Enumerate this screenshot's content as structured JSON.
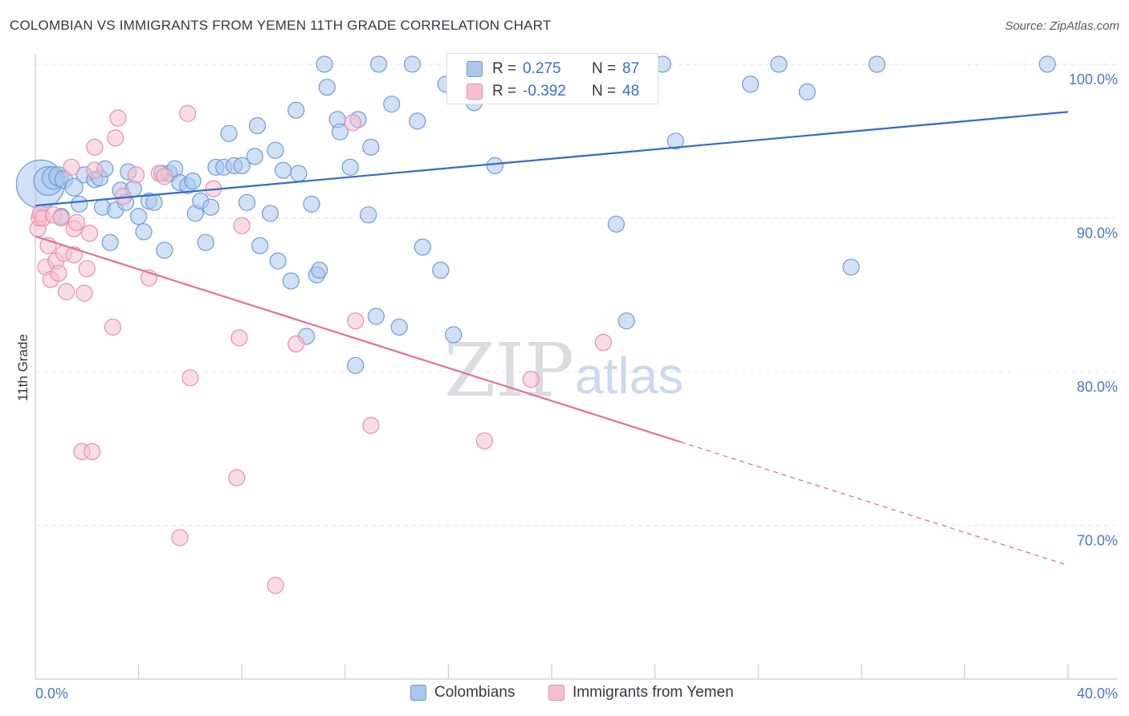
{
  "header": {
    "title": "COLOMBIAN VS IMMIGRANTS FROM YEMEN 11TH GRADE CORRELATION CHART",
    "source": "Source: ZipAtlas.com"
  },
  "watermark": {
    "zip": "ZIP",
    "atlas": "atlas"
  },
  "colors": {
    "blue_fill": "#a9c6ec",
    "blue_stroke": "#6f9bd8",
    "blue_line": "#2f6cc7",
    "pink_fill": "#f6bfd0",
    "pink_stroke": "#e98fab",
    "pink_line": "#e0709a",
    "tick_text": "#4a78c4",
    "grid": "#e3e5ea"
  },
  "legend": {
    "rows": [
      {
        "r_label": "R =",
        "r_value": "0.275",
        "n_label": "N =",
        "n_value": "87"
      },
      {
        "r_label": "R =",
        "r_value": "-0.392",
        "n_label": "N =",
        "n_value": "48"
      }
    ]
  },
  "bottom_legend": {
    "series1": "Colombians",
    "series2": "Immigrants from Yemen"
  },
  "chart_data": {
    "type": "scatter",
    "xlabel": "",
    "ylabel": "11th Grade",
    "xlim": [
      0,
      40
    ],
    "ylim": [
      60.5,
      100.8
    ],
    "x_tick_labels": [
      "0.0%",
      "40.0%"
    ],
    "y_ticks": [
      100,
      90,
      80,
      70
    ],
    "y_tick_labels": [
      "100.0%",
      "90.0%",
      "80.0%",
      "70.0%"
    ],
    "grid": true,
    "legend_position": "top-center",
    "series": [
      {
        "name": "Colombians",
        "color": "#a9c6ec",
        "trend": {
          "x": [
            0,
            40
          ],
          "y": [
            90.8,
            96.9
          ],
          "dashed_from": null
        },
        "points": [
          [
            0.2,
            92.2,
            30
          ],
          [
            0.5,
            92.4,
            18
          ],
          [
            0.7,
            92.6,
            14
          ],
          [
            0.9,
            92.7,
            12
          ],
          [
            1.1,
            92.5,
            11
          ],
          [
            1.5,
            92.0,
            11
          ],
          [
            1.0,
            90.1,
            10
          ],
          [
            1.7,
            90.9,
            10
          ],
          [
            1.9,
            92.8,
            10
          ],
          [
            2.3,
            92.5,
            10
          ],
          [
            2.5,
            92.6,
            10
          ],
          [
            2.6,
            90.7,
            10
          ],
          [
            2.7,
            93.2,
            10
          ],
          [
            2.9,
            88.4,
            10
          ],
          [
            3.1,
            90.5,
            10
          ],
          [
            3.3,
            91.8,
            10
          ],
          [
            3.5,
            91.0,
            10
          ],
          [
            3.6,
            93.0,
            10
          ],
          [
            3.8,
            91.9,
            10
          ],
          [
            4.0,
            90.1,
            10
          ],
          [
            4.2,
            89.1,
            10
          ],
          [
            4.4,
            91.1,
            10
          ],
          [
            4.6,
            91.0,
            10
          ],
          [
            4.9,
            92.9,
            10
          ],
          [
            5.0,
            87.9,
            10
          ],
          [
            5.2,
            92.9,
            10
          ],
          [
            5.4,
            93.2,
            10
          ],
          [
            5.6,
            92.3,
            10
          ],
          [
            5.9,
            92.1,
            10
          ],
          [
            6.1,
            92.4,
            10
          ],
          [
            6.2,
            90.3,
            10
          ],
          [
            6.4,
            91.1,
            10
          ],
          [
            6.6,
            88.4,
            10
          ],
          [
            6.8,
            90.7,
            10
          ],
          [
            7.0,
            93.3,
            10
          ],
          [
            7.3,
            93.3,
            10
          ],
          [
            7.5,
            95.5,
            10
          ],
          [
            7.7,
            93.4,
            10
          ],
          [
            8.0,
            93.4,
            10
          ],
          [
            8.2,
            91.0,
            10
          ],
          [
            8.5,
            94.0,
            10
          ],
          [
            8.6,
            96.0,
            10
          ],
          [
            8.7,
            88.2,
            10
          ],
          [
            9.1,
            90.3,
            10
          ],
          [
            9.3,
            94.4,
            10
          ],
          [
            9.4,
            87.2,
            10
          ],
          [
            9.6,
            93.1,
            10
          ],
          [
            9.9,
            85.9,
            10
          ],
          [
            10.1,
            97.0,
            10
          ],
          [
            10.2,
            92.9,
            10
          ],
          [
            10.5,
            82.3,
            10
          ],
          [
            10.7,
            90.9,
            10
          ],
          [
            10.9,
            86.3,
            10
          ],
          [
            11.0,
            86.6,
            10
          ],
          [
            11.2,
            100.0,
            10
          ],
          [
            11.3,
            98.5,
            10
          ],
          [
            11.7,
            96.4,
            10
          ],
          [
            11.8,
            95.6,
            10
          ],
          [
            12.2,
            93.3,
            10
          ],
          [
            12.4,
            80.4,
            10
          ],
          [
            12.5,
            96.4,
            10
          ],
          [
            12.9,
            90.2,
            10
          ],
          [
            13.0,
            94.6,
            10
          ],
          [
            13.2,
            83.6,
            10
          ],
          [
            13.3,
            100.0,
            10
          ],
          [
            13.8,
            97.4,
            10
          ],
          [
            14.1,
            82.9,
            10
          ],
          [
            14.6,
            100.0,
            10
          ],
          [
            14.8,
            96.3,
            10
          ],
          [
            15.0,
            88.1,
            10
          ],
          [
            15.7,
            86.6,
            10
          ],
          [
            15.9,
            98.7,
            10
          ],
          [
            16.2,
            82.4,
            10
          ],
          [
            17.0,
            97.5,
            10
          ],
          [
            17.8,
            93.4,
            10
          ],
          [
            20.0,
            100.0,
            10
          ],
          [
            22.5,
            89.6,
            10
          ],
          [
            22.9,
            83.3,
            10
          ],
          [
            24.3,
            100.0,
            10
          ],
          [
            24.8,
            95.0,
            10
          ],
          [
            27.7,
            98.7,
            10
          ],
          [
            28.8,
            100.0,
            10
          ],
          [
            29.9,
            98.2,
            10
          ],
          [
            31.6,
            86.8,
            10
          ],
          [
            32.6,
            100.0,
            10
          ],
          [
            39.2,
            100.0,
            10
          ],
          [
            30.5,
            100.0,
            0
          ]
        ]
      },
      {
        "name": "Immigrants from Yemen",
        "color": "#f6bfd0",
        "trend": {
          "x": [
            0,
            40
          ],
          "y": [
            88.8,
            67.4
          ],
          "dashed_from": 25.0
        },
        "points": [
          [
            0.1,
            89.3,
            10
          ],
          [
            0.15,
            90.0,
            10
          ],
          [
            0.2,
            90.3,
            10
          ],
          [
            0.3,
            90.0,
            10
          ],
          [
            0.4,
            86.8,
            10
          ],
          [
            0.5,
            88.2,
            10
          ],
          [
            0.6,
            86.0,
            10
          ],
          [
            0.7,
            90.2,
            10
          ],
          [
            0.8,
            87.2,
            10
          ],
          [
            0.9,
            86.4,
            10
          ],
          [
            1.0,
            90.0,
            10
          ],
          [
            1.1,
            87.7,
            10
          ],
          [
            1.2,
            85.2,
            10
          ],
          [
            1.4,
            93.3,
            10
          ],
          [
            1.5,
            87.6,
            10
          ],
          [
            1.5,
            89.3,
            10
          ],
          [
            1.6,
            89.7,
            10
          ],
          [
            1.8,
            74.8,
            10
          ],
          [
            1.9,
            85.1,
            10
          ],
          [
            2.0,
            86.7,
            10
          ],
          [
            2.1,
            89.0,
            10
          ],
          [
            2.2,
            74.8,
            10
          ],
          [
            2.3,
            93.1,
            10
          ],
          [
            2.3,
            94.6,
            10
          ],
          [
            3.0,
            82.9,
            10
          ],
          [
            3.1,
            95.2,
            10
          ],
          [
            3.2,
            96.5,
            10
          ],
          [
            3.4,
            91.4,
            10
          ],
          [
            3.9,
            92.8,
            10
          ],
          [
            4.4,
            86.1,
            10
          ],
          [
            4.8,
            92.9,
            10
          ],
          [
            5.0,
            92.7,
            10
          ],
          [
            5.6,
            69.2,
            10
          ],
          [
            5.9,
            96.8,
            10
          ],
          [
            6.0,
            79.6,
            10
          ],
          [
            6.9,
            91.9,
            10
          ],
          [
            7.8,
            73.1,
            10
          ],
          [
            7.9,
            82.2,
            10
          ],
          [
            8.0,
            89.5,
            10
          ],
          [
            9.3,
            66.1,
            10
          ],
          [
            10.1,
            81.8,
            10
          ],
          [
            12.3,
            96.2,
            10
          ],
          [
            12.4,
            83.3,
            10
          ],
          [
            13.0,
            76.5,
            10
          ],
          [
            17.4,
            75.5,
            10
          ],
          [
            19.2,
            79.5,
            10
          ],
          [
            22.0,
            81.9,
            10
          ],
          [
            5.8,
            92.8,
            0
          ]
        ]
      }
    ]
  }
}
